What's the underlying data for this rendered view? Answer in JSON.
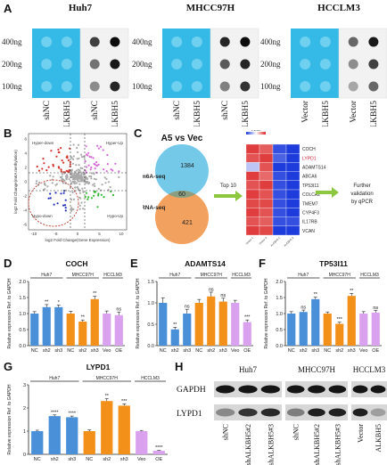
{
  "panel_labels": [
    "A",
    "B",
    "C",
    "D",
    "E",
    "F",
    "G",
    "H"
  ],
  "panelA": {
    "cells": [
      "Huh7",
      "MHCC97H",
      "HCCLM3"
    ],
    "rows": [
      "400ng",
      "200ng",
      "100ng"
    ],
    "group_labels": [
      [
        "shNC",
        "shALKBH5"
      ],
      [
        "shNC",
        "shALKBH5"
      ],
      [
        "Vector",
        "ALKBH5"
      ]
    ],
    "colors": {
      "membrane": "#35b9e6",
      "membrane_light": "#6fd0f0",
      "film": "#f2f2f2",
      "dot": "#1a1a1a"
    }
  },
  "panelB": {
    "quadrants": [
      "Hyper-down",
      "Hyper-Up",
      "Hypo-down",
      "Hypo-Up"
    ],
    "xlabel": "log2 Fold Change(Gene Expression)",
    "ylabel": "log2 Fold Change(m6A methylation)",
    "xticks": [
      "-10",
      "-5",
      "0",
      "5",
      "10"
    ],
    "yticks": [
      "6",
      "4",
      "2",
      "0",
      "-2",
      "-4",
      "-6"
    ]
  },
  "panelC": {
    "title": "A5 vs Vec",
    "sets": [
      "m6A-seq",
      "RNA-seq"
    ],
    "counts": {
      "m6a_only": "1384",
      "overlap": "60",
      "rna_only": "421"
    },
    "arrow_label": "Top 10",
    "legend_title": "Z-score",
    "genes": [
      "COCH",
      "LYPD1",
      "ADAMTS14",
      "ABCA6",
      "TP53I11",
      "COLCA2",
      "TMEM7",
      "CYP4F3",
      "IL17RB",
      "VCAN"
    ],
    "highlight_gene": "LYPD1",
    "columns": [
      "Vector-1",
      "Vector-2",
      "ALKBH5-1",
      "ALKBH5-2"
    ],
    "validation_text": [
      "Further",
      "validation",
      "by qPCR"
    ],
    "colors": {
      "m6a": "#74c8e8",
      "rna": "#f3a15e",
      "overlap": "#8a9f82",
      "arrow": "#8dc63f"
    }
  },
  "barcharts": {
    "ylabel": "Relative expression Ref. to GAPDH",
    "categories": [
      "NC",
      "sh2",
      "sh3",
      "NC",
      "sh2",
      "sh3",
      "Veo",
      "OE"
    ],
    "groups": [
      "Huh7",
      "MHCC97H",
      "HCCLM3"
    ],
    "colors": [
      "#4a90d9",
      "#4a90d9",
      "#4a90d9",
      "#f39019",
      "#f39019",
      "#f39019",
      "#d9a1ee",
      "#d9a1ee"
    ]
  },
  "chart_data": [
    {
      "type": "bar",
      "panel": "D",
      "title": "COCH",
      "categories": [
        "NC",
        "sh2",
        "sh3",
        "NC",
        "sh2",
        "sh3",
        "Veo",
        "OE"
      ],
      "values": [
        1.0,
        1.2,
        1.2,
        1.0,
        0.75,
        1.45,
        1.0,
        0.95
      ],
      "errors": [
        0.06,
        0.08,
        0.07,
        0.07,
        0.05,
        0.09,
        0.08,
        0.1
      ],
      "significance": [
        "",
        "**",
        "*",
        "",
        "**",
        "**",
        "",
        "ns"
      ],
      "ylim": [
        0,
        2.0
      ],
      "yticks": [
        "0.0",
        "0.5",
        "1.0",
        "1.5",
        "2.0"
      ]
    },
    {
      "type": "bar",
      "panel": "E",
      "title": "ADAMTS14",
      "categories": [
        "NC",
        "sh2",
        "sh3",
        "NC",
        "sh2",
        "sh3",
        "Veo",
        "OE"
      ],
      "values": [
        1.0,
        0.38,
        0.75,
        1.0,
        1.15,
        1.03,
        1.0,
        0.55
      ],
      "errors": [
        0.12,
        0.05,
        0.1,
        0.08,
        0.1,
        0.08,
        0.06,
        0.05
      ],
      "significance": [
        "",
        "**",
        "ns",
        "",
        "ns",
        "ns",
        "",
        "***"
      ],
      "ylim": [
        0,
        1.5
      ],
      "yticks": [
        "0.0",
        "0.5",
        "1.0",
        "1.5"
      ]
    },
    {
      "type": "bar",
      "panel": "F",
      "title": "TP53I11",
      "categories": [
        "NC",
        "sh2",
        "sh3",
        "NC",
        "sh2",
        "sh3",
        "Veo",
        "OE"
      ],
      "values": [
        1.0,
        1.05,
        1.45,
        1.0,
        0.68,
        1.55,
        1.0,
        1.03
      ],
      "errors": [
        0.06,
        0.06,
        0.06,
        0.05,
        0.05,
        0.08,
        0.06,
        0.07
      ],
      "significance": [
        "",
        "ns",
        "**",
        "",
        "***",
        "**",
        "",
        "ns"
      ],
      "ylim": [
        0,
        2.0
      ],
      "yticks": [
        "0.0",
        "0.5",
        "1.0",
        "1.5",
        "2.0"
      ]
    },
    {
      "type": "bar",
      "panel": "G",
      "title": "LYPD1",
      "categories": [
        "NC",
        "sh2",
        "sh3",
        "NC",
        "sh2",
        "sh3",
        "Veo",
        "OE"
      ],
      "values": [
        1.0,
        1.65,
        1.6,
        1.0,
        2.3,
        2.1,
        1.0,
        0.15
      ],
      "errors": [
        0.04,
        0.05,
        0.05,
        0.05,
        0.1,
        0.08,
        0.03,
        0.02
      ],
      "significance": [
        "",
        "****",
        "****",
        "",
        "**",
        "***",
        "",
        "****"
      ],
      "ylim": [
        0,
        3
      ],
      "yticks": [
        "0",
        "1",
        "2",
        "3"
      ]
    }
  ],
  "panelH": {
    "cells": [
      "Huh7",
      "MHCC97H",
      "HCCLM3"
    ],
    "proteins": [
      "GAPDH",
      "LYPD1"
    ],
    "lanes": [
      "shNC",
      "shALKBH5#2",
      "shALKBH5#3",
      "shNC",
      "shALKBH5#2",
      "shALKBH5#3",
      "Vector",
      "ALKBH5"
    ]
  }
}
